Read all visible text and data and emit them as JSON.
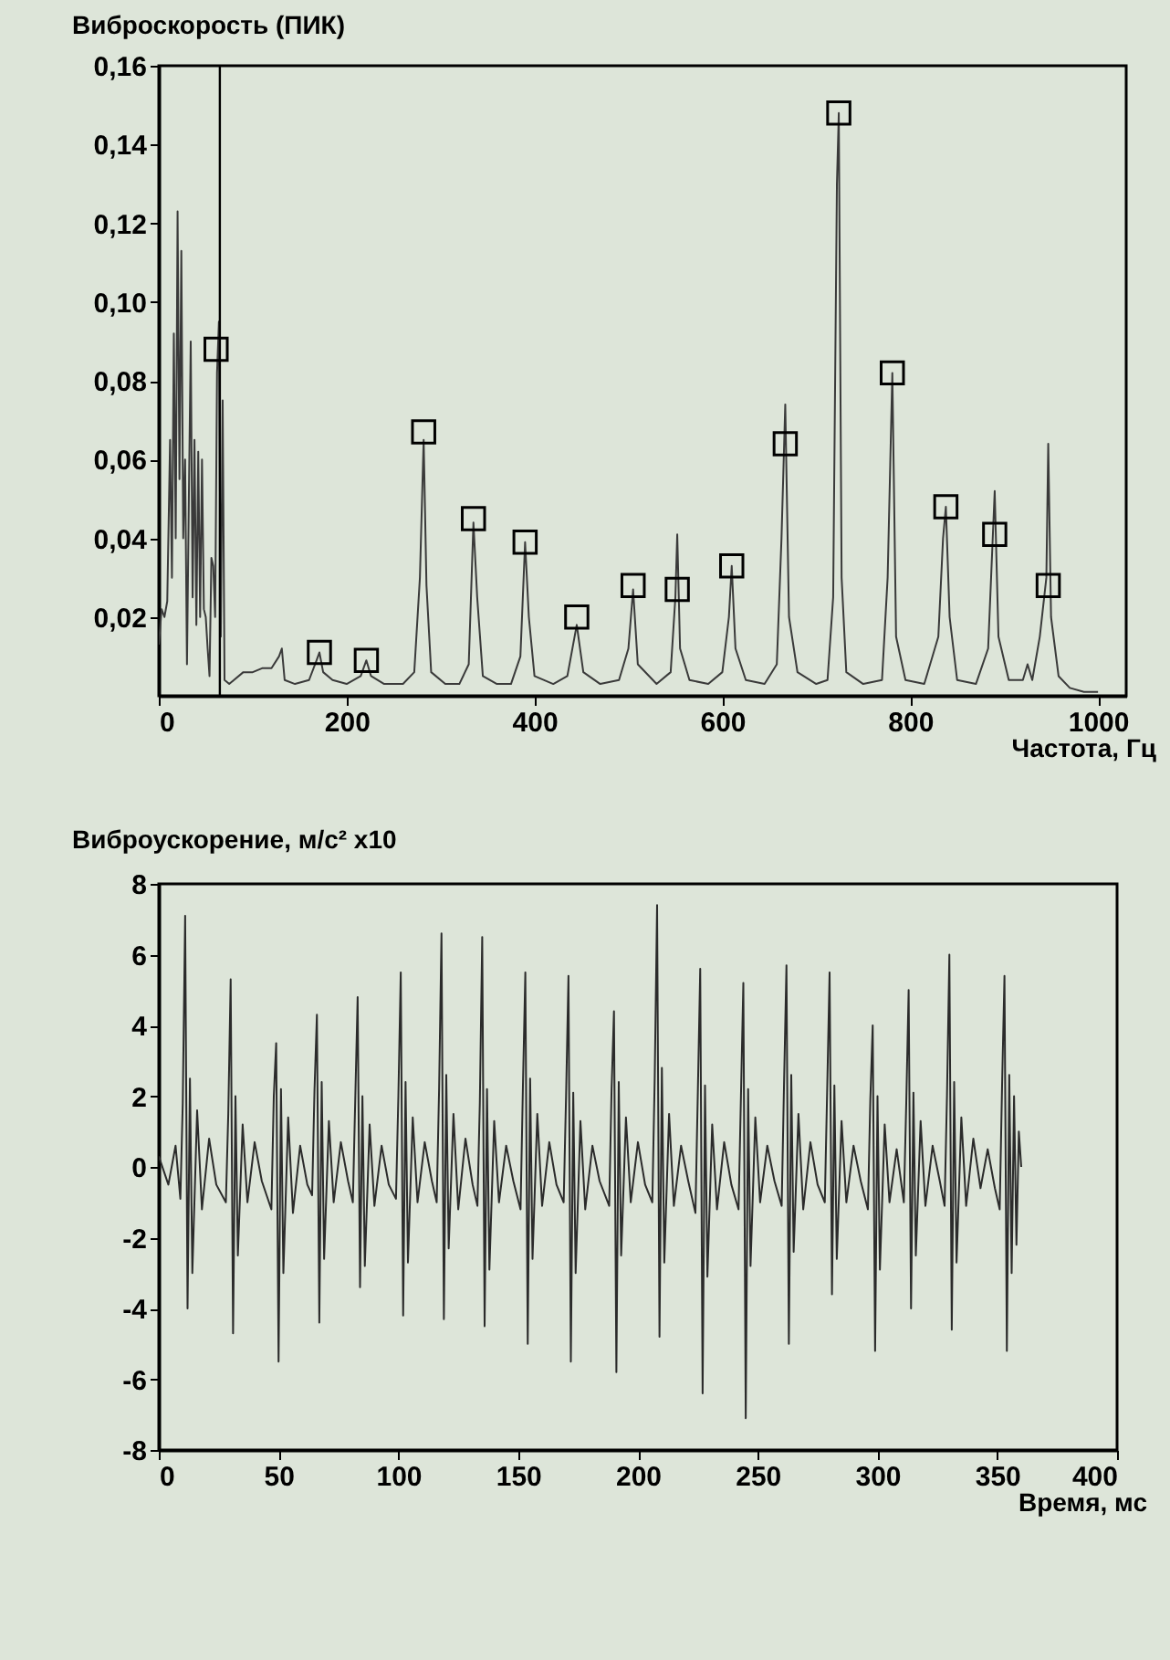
{
  "chart_data": [
    {
      "type": "line",
      "ylabel": "Виброскорость (ПИК)",
      "xlabel": "Частота, Гц",
      "xlim": [
        0,
        1030
      ],
      "xticks": [
        0,
        200,
        400,
        600,
        800,
        1000
      ],
      "ylim": [
        0,
        0.16
      ],
      "yticks": [
        {
          "value": 0.02,
          "label": "0,02"
        },
        {
          "value": 0.04,
          "label": "0,04"
        },
        {
          "value": 0.06,
          "label": "0,06"
        },
        {
          "value": 0.08,
          "label": "0,08"
        },
        {
          "value": 0.1,
          "label": "0,10"
        },
        {
          "value": 0.12,
          "label": "0,12"
        },
        {
          "value": 0.14,
          "label": "0,14"
        },
        {
          "value": 0.16,
          "label": "0,16"
        }
      ],
      "ref_lines": [
        {
          "axis": "x",
          "value": 65,
          "color": "#000000"
        }
      ],
      "series": [
        {
          "type": "line",
          "color": "#3a3a3a",
          "x": [
            0,
            3,
            6,
            9,
            12,
            14,
            16,
            18,
            20,
            22,
            24,
            26,
            28,
            30,
            32,
            34,
            36,
            38,
            40,
            42,
            44,
            46,
            48,
            50,
            52,
            54,
            56,
            58,
            60,
            62,
            64,
            66,
            68,
            70,
            75,
            80,
            90,
            100,
            110,
            120,
            128,
            131,
            134,
            145,
            160,
            168,
            171,
            175,
            185,
            200,
            215,
            221,
            226,
            240,
            260,
            272,
            278,
            282,
            285,
            290,
            305,
            320,
            330,
            335,
            339,
            345,
            360,
            375,
            385,
            390,
            394,
            400,
            420,
            435,
            445,
            452,
            470,
            490,
            500,
            505,
            510,
            530,
            545,
            550,
            552,
            555,
            565,
            585,
            600,
            607,
            610,
            614,
            625,
            645,
            658,
            663,
            667,
            671,
            680,
            700,
            712,
            718,
            722,
            724,
            727,
            732,
            750,
            770,
            776,
            781,
            785,
            795,
            815,
            830,
            835,
            838,
            842,
            850,
            870,
            883,
            890,
            894,
            905,
            920,
            925,
            930,
            938,
            945,
            947,
            950,
            958,
            970,
            985,
            1000
          ],
          "values": [
            0.013,
            0.022,
            0.02,
            0.024,
            0.065,
            0.03,
            0.092,
            0.04,
            0.123,
            0.055,
            0.113,
            0.04,
            0.06,
            0.008,
            0.05,
            0.09,
            0.025,
            0.065,
            0.018,
            0.062,
            0.02,
            0.06,
            0.022,
            0.02,
            0.012,
            0.005,
            0.035,
            0.033,
            0.02,
            0.082,
            0.095,
            0.015,
            0.075,
            0.004,
            0.003,
            0.004,
            0.006,
            0.006,
            0.007,
            0.007,
            0.01,
            0.012,
            0.004,
            0.003,
            0.004,
            0.009,
            0.011,
            0.006,
            0.004,
            0.003,
            0.005,
            0.009,
            0.005,
            0.003,
            0.003,
            0.006,
            0.03,
            0.065,
            0.028,
            0.006,
            0.003,
            0.003,
            0.008,
            0.044,
            0.025,
            0.005,
            0.003,
            0.003,
            0.01,
            0.039,
            0.02,
            0.005,
            0.003,
            0.005,
            0.018,
            0.006,
            0.003,
            0.004,
            0.012,
            0.027,
            0.008,
            0.003,
            0.006,
            0.025,
            0.041,
            0.012,
            0.004,
            0.003,
            0.006,
            0.02,
            0.033,
            0.012,
            0.004,
            0.003,
            0.008,
            0.04,
            0.074,
            0.02,
            0.006,
            0.003,
            0.004,
            0.025,
            0.13,
            0.148,
            0.03,
            0.006,
            0.003,
            0.004,
            0.03,
            0.082,
            0.015,
            0.004,
            0.003,
            0.015,
            0.04,
            0.048,
            0.02,
            0.004,
            0.003,
            0.012,
            0.052,
            0.015,
            0.004,
            0.004,
            0.008,
            0.004,
            0.015,
            0.03,
            0.064,
            0.02,
            0.005,
            0.002,
            0.001,
            0.001
          ]
        },
        {
          "type": "scatter",
          "color": "#000000",
          "marker": "square",
          "x": [
            61,
            171,
            221,
            282,
            335,
            390,
            445,
            505,
            552,
            610,
            667,
            724,
            781,
            838,
            890,
            947
          ],
          "values": [
            0.088,
            0.011,
            0.009,
            0.067,
            0.045,
            0.039,
            0.02,
            0.028,
            0.027,
            0.033,
            0.064,
            0.148,
            0.082,
            0.048,
            0.041,
            0.028
          ]
        }
      ]
    },
    {
      "type": "line",
      "ylabel": "Виброускорение, м/с² x10",
      "xlabel": "Время, мс",
      "xlim": [
        0,
        400
      ],
      "xticks": [
        0,
        50,
        100,
        150,
        200,
        250,
        300,
        350,
        400
      ],
      "ylim": [
        -8,
        8
      ],
      "yticks": [
        -8,
        -6,
        -4,
        -2,
        0,
        2,
        4,
        6,
        8
      ],
      "series": [
        {
          "color": "#2b2b2b",
          "x": [
            0,
            4,
            7,
            9,
            10,
            11,
            12,
            13,
            14,
            16,
            18,
            21,
            24,
            28,
            29,
            30,
            31,
            32,
            33,
            35,
            37,
            40,
            43,
            47,
            48,
            49,
            50,
            51,
            52,
            54,
            56,
            59,
            62,
            64,
            65,
            66,
            67,
            68,
            69,
            71,
            73,
            76,
            79,
            81,
            82,
            83,
            84,
            85,
            86,
            88,
            90,
            93,
            96,
            99,
            100,
            101,
            102,
            103,
            104,
            106,
            108,
            111,
            114,
            116,
            117,
            118,
            119,
            120,
            121,
            123,
            125,
            128,
            131,
            133,
            134,
            135,
            136,
            137,
            138,
            140,
            142,
            145,
            148,
            151,
            152,
            153,
            154,
            155,
            156,
            158,
            160,
            163,
            166,
            169,
            170,
            171,
            172,
            173,
            174,
            176,
            178,
            181,
            184,
            188,
            189,
            190,
            191,
            192,
            193,
            195,
            197,
            200,
            203,
            206,
            207,
            208,
            209,
            210,
            211,
            213,
            215,
            218,
            221,
            224,
            225,
            226,
            227,
            228,
            229,
            231,
            233,
            236,
            239,
            242,
            243,
            244,
            245,
            246,
            247,
            249,
            251,
            254,
            257,
            260,
            261,
            262,
            263,
            264,
            265,
            267,
            269,
            272,
            275,
            278,
            279,
            280,
            281,
            282,
            283,
            285,
            287,
            290,
            293,
            296,
            297,
            298,
            299,
            300,
            301,
            303,
            305,
            308,
            311,
            312,
            313,
            314,
            315,
            316,
            318,
            320,
            323,
            326,
            328,
            329,
            330,
            331,
            332,
            333,
            335,
            337,
            340,
            343,
            346,
            349,
            351,
            352,
            353,
            354,
            355,
            356,
            357,
            358,
            359,
            360
          ],
          "values": [
            0.3,
            -0.5,
            0.6,
            -0.9,
            1.8,
            7.1,
            -4.0,
            2.5,
            -3.0,
            1.6,
            -1.2,
            0.8,
            -0.5,
            -1.0,
            1.5,
            5.3,
            -4.7,
            2.0,
            -2.5,
            1.2,
            -1.0,
            0.7,
            -0.4,
            -1.2,
            2.0,
            3.5,
            -5.5,
            2.2,
            -3.0,
            1.4,
            -1.3,
            0.6,
            -0.5,
            -0.8,
            2.2,
            4.3,
            -4.4,
            2.4,
            -2.6,
            1.3,
            -1.0,
            0.7,
            -0.4,
            -1.0,
            1.9,
            4.8,
            -3.4,
            2.0,
            -2.8,
            1.2,
            -1.1,
            0.6,
            -0.5,
            -0.9,
            2.0,
            5.5,
            -4.2,
            2.4,
            -2.7,
            1.4,
            -1.0,
            0.7,
            -0.4,
            -1.0,
            2.2,
            6.6,
            -4.3,
            2.6,
            -2.3,
            1.5,
            -1.2,
            0.8,
            -0.5,
            -1.1,
            1.8,
            6.5,
            -4.5,
            2.2,
            -2.9,
            1.3,
            -1.0,
            0.6,
            -0.4,
            -1.2,
            2.3,
            5.5,
            -5.0,
            2.5,
            -2.6,
            1.5,
            -1.1,
            0.7,
            -0.5,
            -1.0,
            2.0,
            5.4,
            -5.5,
            2.1,
            -3.0,
            1.3,
            -1.2,
            0.6,
            -0.4,
            -1.1,
            2.2,
            4.4,
            -5.8,
            2.4,
            -2.5,
            1.4,
            -1.0,
            0.7,
            -0.5,
            -1.0,
            2.5,
            7.4,
            -4.8,
            2.8,
            -2.7,
            1.5,
            -1.1,
            0.6,
            -0.4,
            -1.3,
            2.1,
            5.6,
            -6.4,
            2.3,
            -3.1,
            1.2,
            -1.2,
            0.7,
            -0.5,
            -1.2,
            2.0,
            5.2,
            -7.1,
            2.2,
            -2.8,
            1.4,
            -1.0,
            0.6,
            -0.4,
            -1.1,
            2.4,
            5.7,
            -5.0,
            2.6,
            -2.4,
            1.5,
            -1.2,
            0.7,
            -0.5,
            -1.0,
            2.2,
            5.5,
            -3.6,
            2.3,
            -2.6,
            1.3,
            -1.0,
            0.6,
            -0.4,
            -1.2,
            1.9,
            4.0,
            -5.2,
            2.0,
            -2.9,
            1.2,
            -1.0,
            0.5,
            -1.0,
            1.8,
            5.0,
            -4.0,
            2.1,
            -2.5,
            1.3,
            -1.1,
            0.6,
            -0.4,
            -1.1,
            2.0,
            6.0,
            -4.6,
            2.4,
            -2.7,
            1.4,
            -1.1,
            0.8,
            -0.6,
            0.5,
            -0.6,
            -1.2,
            2.3,
            5.4,
            -5.2,
            2.6,
            -3.0,
            2.0,
            -2.2,
            1.0,
            0.0
          ]
        }
      ]
    }
  ]
}
